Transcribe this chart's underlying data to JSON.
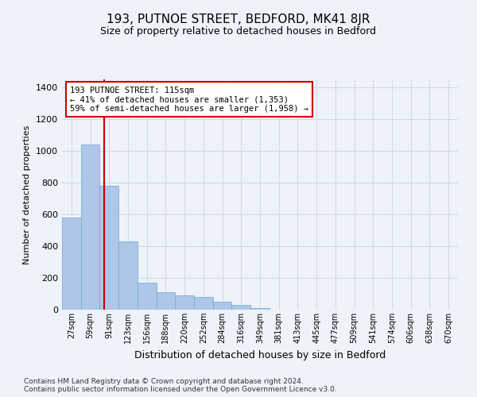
{
  "title_line1": "193, PUTNOE STREET, BEDFORD, MK41 8JR",
  "title_line2": "Size of property relative to detached houses in Bedford",
  "xlabel": "Distribution of detached houses by size in Bedford",
  "ylabel": "Number of detached properties",
  "bin_labels": [
    "27sqm",
    "59sqm",
    "91sqm",
    "123sqm",
    "156sqm",
    "188sqm",
    "220sqm",
    "252sqm",
    "284sqm",
    "316sqm",
    "349sqm",
    "381sqm",
    "413sqm",
    "445sqm",
    "477sqm",
    "509sqm",
    "541sqm",
    "574sqm",
    "606sqm",
    "638sqm",
    "670sqm"
  ],
  "bar_values": [
    580,
    1040,
    780,
    430,
    170,
    110,
    90,
    80,
    50,
    30,
    10,
    0,
    0,
    0,
    0,
    0,
    0,
    0,
    0,
    0,
    0
  ],
  "bar_color": "#aec6e8",
  "bar_edge_color": "#6aaad4",
  "grid_color": "#d0d8e8",
  "annotation_text": "193 PUTNOE STREET: 115sqm\n← 41% of detached houses are smaller (1,353)\n59% of semi-detached houses are larger (1,958) →",
  "annotation_box_color": "#ffffff",
  "annotation_border_color": "#cc0000",
  "property_line_color": "#cc0000",
  "property_line_x": 1.75,
  "ylim": [
    0,
    1450
  ],
  "yticks": [
    0,
    200,
    400,
    600,
    800,
    1000,
    1200,
    1400
  ],
  "footnote": "Contains HM Land Registry data © Crown copyright and database right 2024.\nContains public sector information licensed under the Open Government Licence v3.0.",
  "bg_color": "#eef2f9",
  "plot_bg_color": "#eef2f9"
}
